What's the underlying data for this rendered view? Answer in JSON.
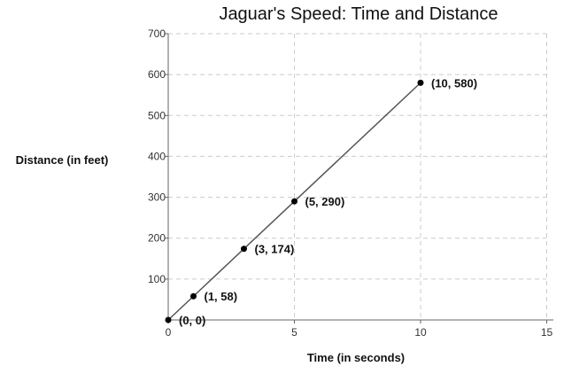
{
  "chart_data": {
    "type": "line",
    "title": "Jaguar's Speed:  Time and Distance",
    "xlabel": "Time (in seconds)",
    "ylabel": "Distance (in feet)",
    "xlim": [
      0,
      15
    ],
    "ylim": [
      0,
      700
    ],
    "x_ticks": [
      "0",
      "5",
      "10",
      "15"
    ],
    "y_ticks": [
      "100",
      "200",
      "300",
      "400",
      "500",
      "600",
      "700"
    ],
    "grid": true,
    "series": [
      {
        "x": [
          0,
          1,
          3,
          5,
          10
        ],
        "y": [
          0,
          58,
          174,
          290,
          580
        ],
        "point_labels": [
          "(0, 0)",
          "(1, 58)",
          "(3, 174)",
          "(5, 290)",
          "(10, 580)"
        ]
      }
    ],
    "colors": {
      "line": "#555555",
      "point": "#000000",
      "grid": "#cccccc",
      "axis": "#666666"
    }
  }
}
